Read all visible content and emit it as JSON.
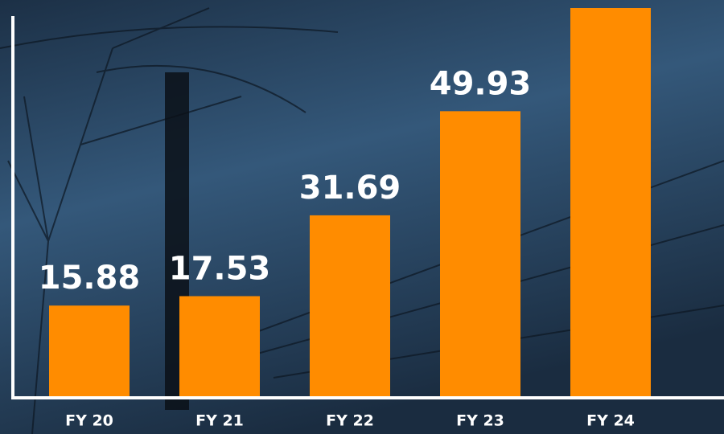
{
  "chart_data": {
    "type": "bar",
    "categories": [
      "FY 20",
      "FY 21",
      "FY 22",
      "FY 23",
      "FY 24"
    ],
    "values": [
      15.88,
      17.53,
      31.69,
      49.93,
      68
    ],
    "value_labels": [
      "15.88",
      "17.53",
      "31.69",
      "49.93",
      null
    ],
    "color": "#ff8c00",
    "ylim": [
      0,
      68
    ]
  }
}
